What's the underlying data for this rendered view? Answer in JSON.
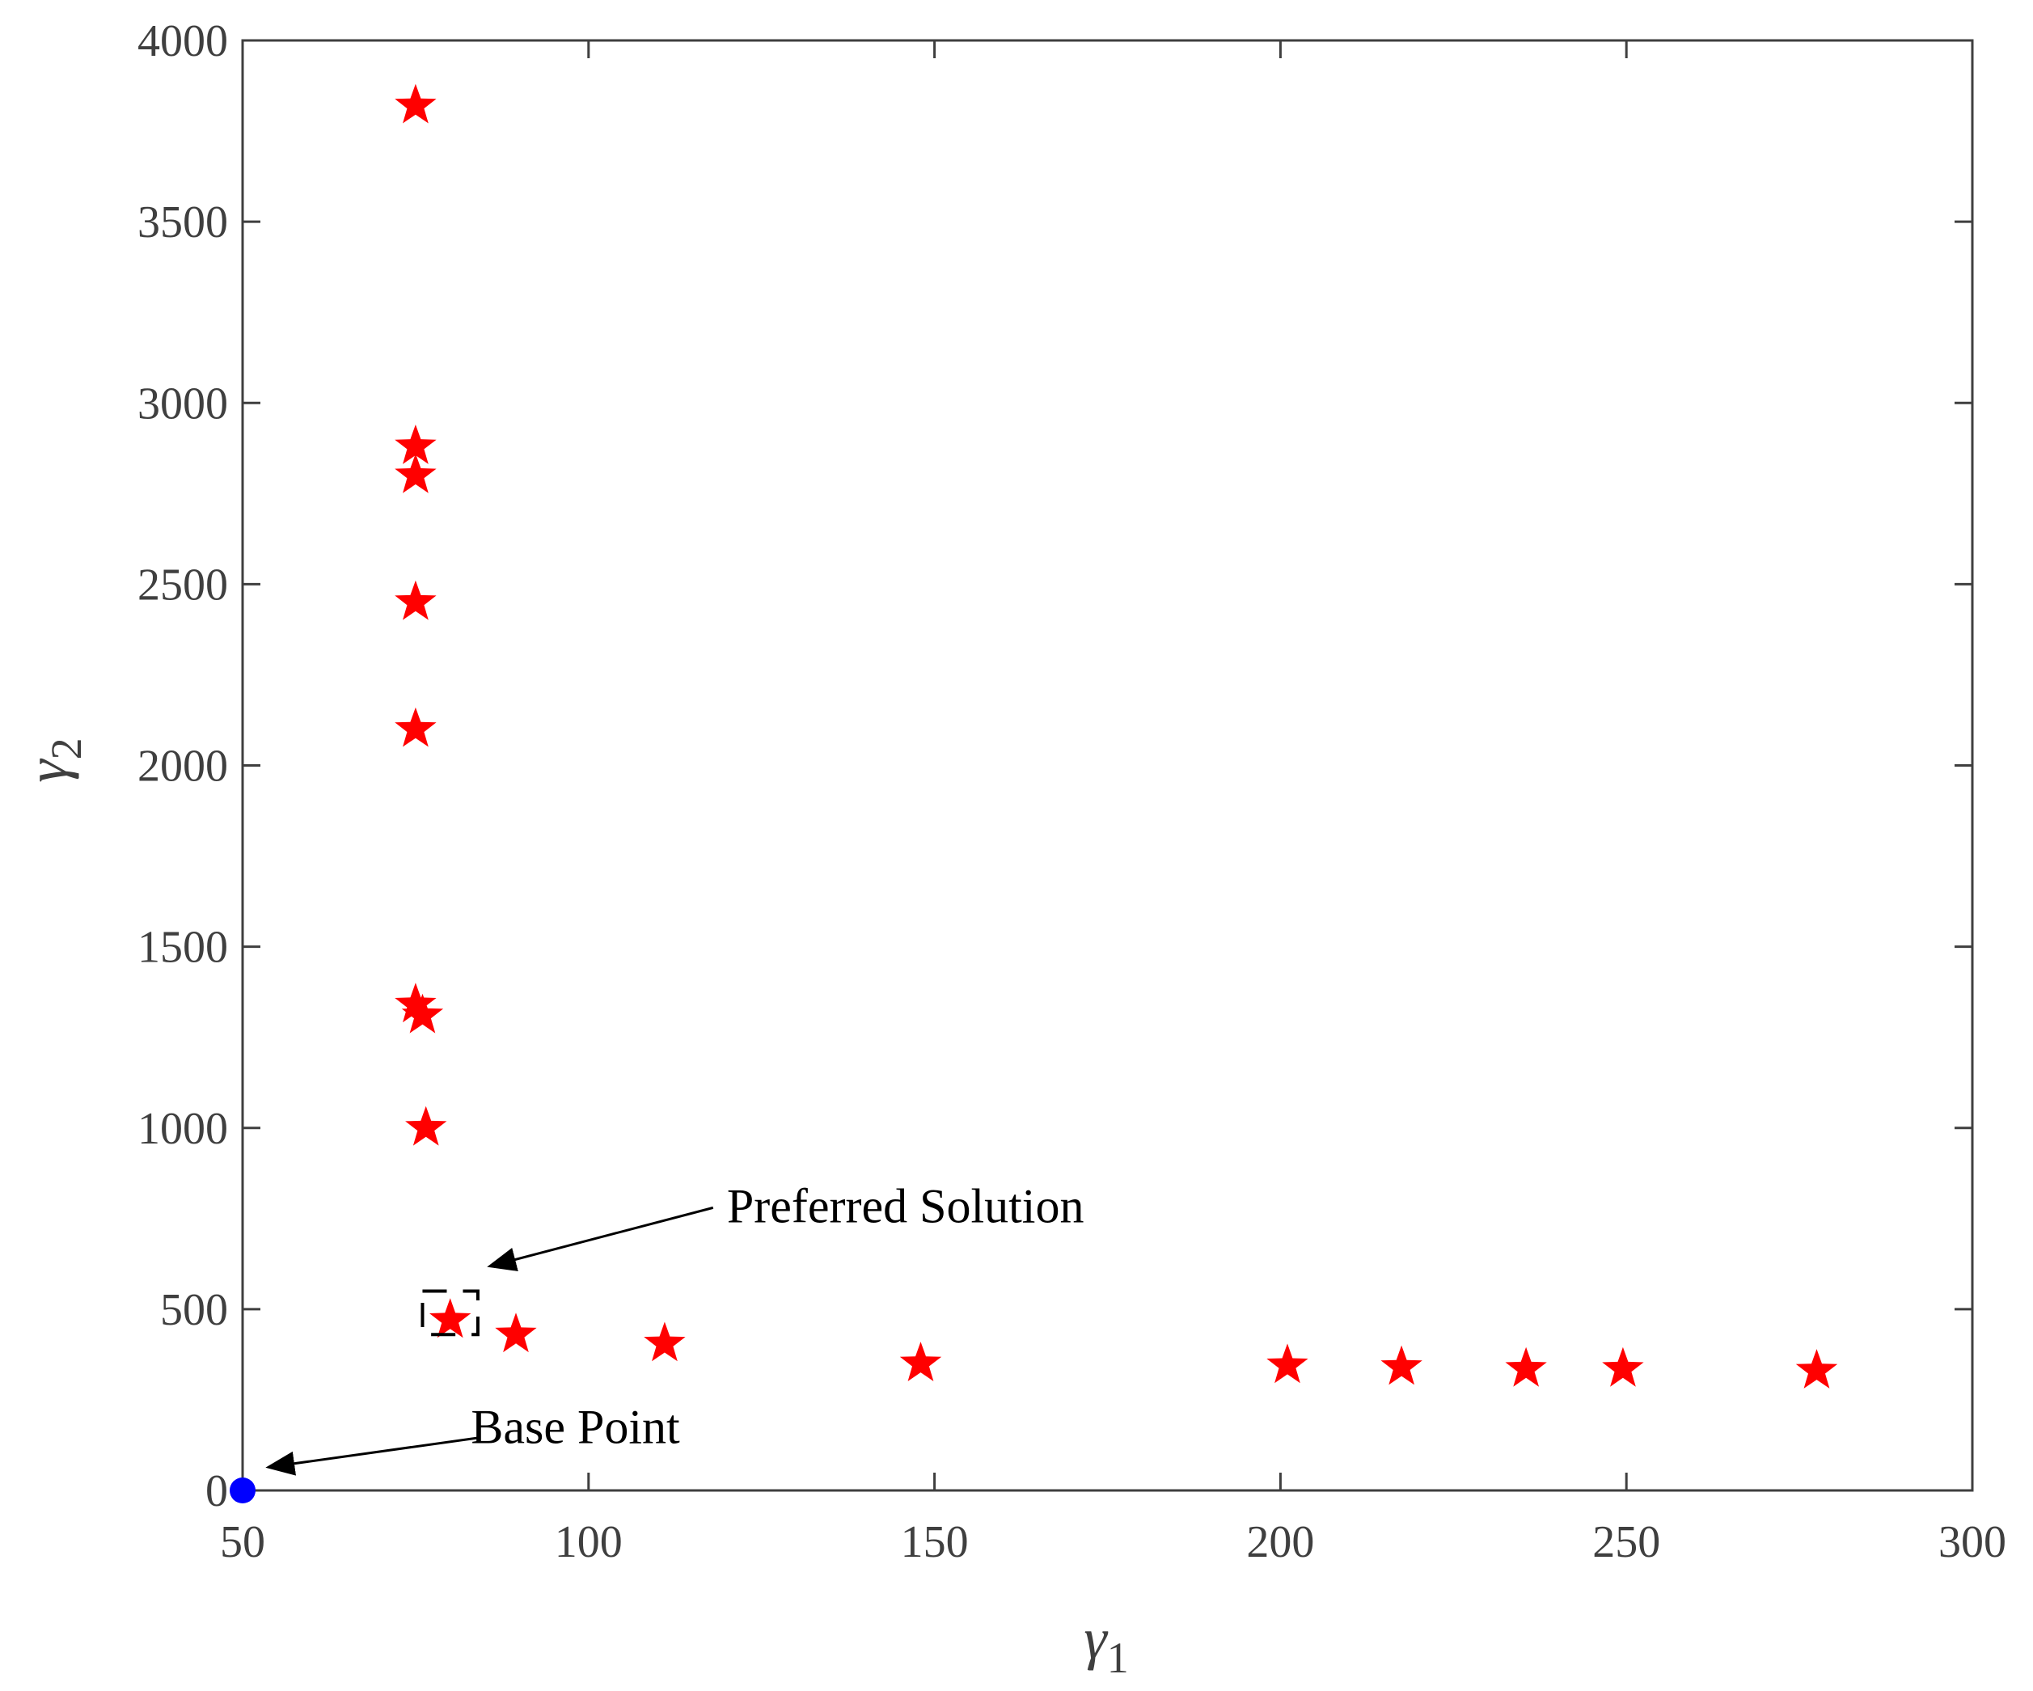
{
  "chart_data": {
    "type": "scatter",
    "xlabel": "γ",
    "xlabel_sub": "1",
    "ylabel": "γ",
    "ylabel_sub": "2",
    "xlim": [
      50,
      300
    ],
    "ylim": [
      0,
      4000
    ],
    "xticks": [
      50,
      100,
      150,
      200,
      250,
      300
    ],
    "yticks": [
      0,
      500,
      1000,
      1500,
      2000,
      2500,
      3000,
      3500,
      4000
    ],
    "grid": false,
    "series": [
      {
        "marker": "star",
        "color": "#ff0000",
        "points": [
          {
            "x": 75,
            "y": 3820
          },
          {
            "x": 75,
            "y": 2880
          },
          {
            "x": 75,
            "y": 2800
          },
          {
            "x": 75,
            "y": 2450
          },
          {
            "x": 75,
            "y": 2100
          },
          {
            "x": 75,
            "y": 1340
          },
          {
            "x": 76,
            "y": 1310
          },
          {
            "x": 76.5,
            "y": 1000
          },
          {
            "x": 80,
            "y": 470
          },
          {
            "x": 89.5,
            "y": 430
          },
          {
            "x": 111,
            "y": 405
          },
          {
            "x": 148,
            "y": 350
          },
          {
            "x": 201,
            "y": 345
          },
          {
            "x": 217.5,
            "y": 340
          },
          {
            "x": 235.5,
            "y": 335
          },
          {
            "x": 249.5,
            "y": 335
          },
          {
            "x": 277.5,
            "y": 330
          }
        ]
      },
      {
        "marker": "circle",
        "color": "#0000ff",
        "points": [
          {
            "x": 50,
            "y": 0
          }
        ]
      }
    ],
    "annotations": [
      {
        "text": "Preferred Solution",
        "text_at": {
          "x": 120,
          "y": 740
        },
        "arrow_from": {
          "x": 118,
          "y": 780
        },
        "arrow_to": {
          "x": 86,
          "y": 620
        }
      },
      {
        "text": "Base Point",
        "text_at": {
          "x": 83,
          "y": 130
        },
        "arrow_from": {
          "x": 84,
          "y": 145
        },
        "arrow_to": {
          "x": 54,
          "y": 65
        }
      }
    ],
    "highlight_box": {
      "x0": 76,
      "x1": 84,
      "y0": 430,
      "y1": 550
    }
  }
}
